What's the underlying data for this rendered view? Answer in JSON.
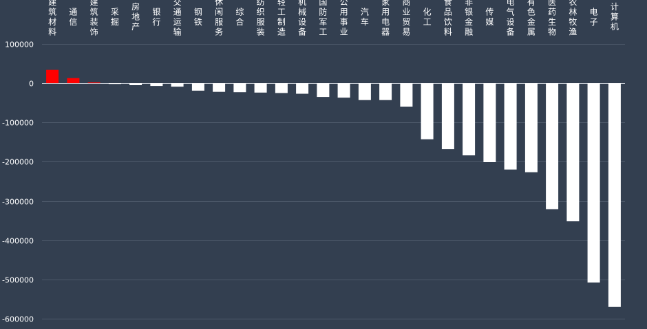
{
  "chart_data": {
    "type": "bar",
    "categories": [
      "建筑材料",
      "通信",
      "建筑装饰",
      "采掘",
      "房地产",
      "银行",
      "交通运输",
      "钢铁",
      "休闲服务",
      "综合",
      "纺织服装",
      "轻工制造",
      "机械设备",
      "国防军工",
      "公用事业",
      "汽车",
      "家用电器",
      "商业贸易",
      "化工",
      "食品饮料",
      "非银金融",
      "传媒",
      "电气设备",
      "有色金属",
      "医药生物",
      "农林牧渔",
      "电子",
      "计算机"
    ],
    "values": [
      34000,
      13000,
      2000,
      -2000,
      -5000,
      -7000,
      -9000,
      -19000,
      -22000,
      -23000,
      -24000,
      -25000,
      -27000,
      -35000,
      -37000,
      -43000,
      -43000,
      -60000,
      -143000,
      -168000,
      -184000,
      -201000,
      -220000,
      -227000,
      -321000,
      -352000,
      -508000,
      -570000
    ],
    "ylim": [
      -600000,
      100000
    ],
    "yticks": [
      100000,
      0,
      -100000,
      -200000,
      -300000,
      -400000,
      -500000,
      -600000
    ],
    "ytick_labels": [
      "100000",
      "0",
      "-100000",
      "-200000",
      "-300000",
      "-400000",
      "-500000",
      "-600000"
    ],
    "grid": true,
    "positive_color": "#ff0000",
    "negative_color": "#ffffff",
    "background": "#333f50"
  }
}
